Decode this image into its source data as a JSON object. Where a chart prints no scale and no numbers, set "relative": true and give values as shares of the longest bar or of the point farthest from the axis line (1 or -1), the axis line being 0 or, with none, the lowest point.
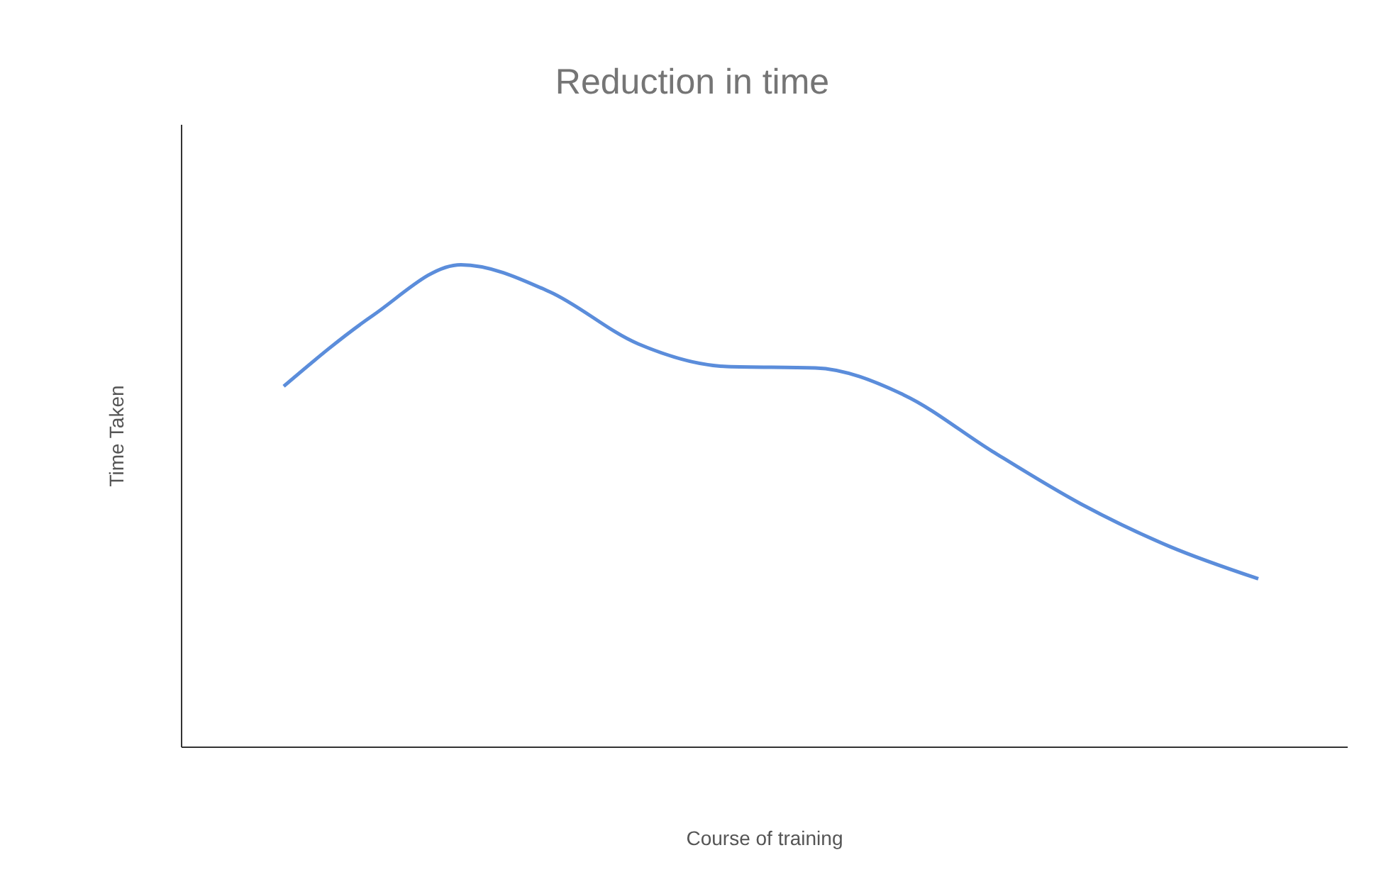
{
  "chart_data": {
    "type": "line",
    "title": "Reduction in time",
    "xlabel": "Course of training",
    "ylabel": "Time Taken",
    "relative": true,
    "categories": [
      null,
      null,
      null,
      null,
      null,
      null,
      null,
      null,
      null,
      null,
      null,
      null
    ],
    "series": [
      {
        "color": "#5b8ddb",
        "values": [
          0.748,
          0.894,
          1,
          0.944,
          0.836,
          0.789,
          0.786,
          0.73,
          0.613,
          0.504,
          0.416,
          0.349
        ]
      }
    ],
    "grid": false,
    "legend": false,
    "marker": "none",
    "line_style": "solid"
  }
}
